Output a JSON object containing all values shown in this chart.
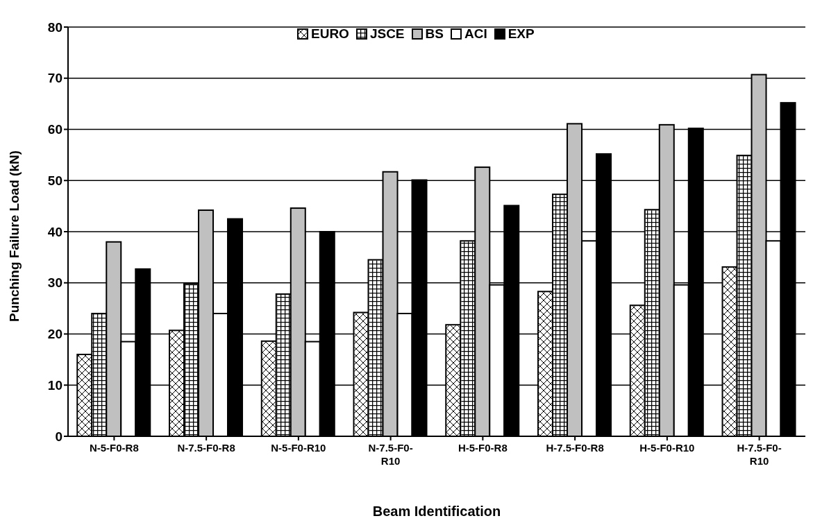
{
  "chart_data": {
    "type": "bar",
    "xlabel": "Beam Identification",
    "ylabel": "Punching Failure Load (kN)",
    "categories": [
      "N-5-F0-R8",
      "N-7.5-F0-R8",
      "N-5-F0-R10",
      "N-7.5-F0-R10",
      "H-5-F0-R8",
      "H-7.5-F0-R8",
      "H-5-F0-R10",
      "H-7.5-F0-R10"
    ],
    "series": [
      {
        "name": "EURO",
        "color": "#ffffff",
        "values": [
          16,
          20.7,
          18.6,
          24.2,
          21.8,
          28.3,
          25.6,
          33.1
        ]
      },
      {
        "name": "JSCE",
        "color": "#ffffff",
        "values": [
          24,
          29.8,
          27.8,
          34.5,
          38.2,
          47.3,
          44.3,
          54.9
        ]
      },
      {
        "name": "BS",
        "color": "#c0c0c0",
        "values": [
          38,
          44.2,
          44.6,
          51.7,
          52.6,
          61.1,
          60.9,
          70.7
        ]
      },
      {
        "name": "ACI",
        "color": "#ffffff",
        "values": [
          18.5,
          24,
          18.5,
          24,
          29.6,
          38.2,
          29.6,
          38.2
        ]
      },
      {
        "name": "EXP",
        "color": "#000000",
        "values": [
          32.7,
          42.5,
          40,
          50.1,
          45.1,
          55.2,
          60.2,
          65.2
        ]
      }
    ],
    "ylim": [
      0,
      80
    ],
    "yticks": [
      0,
      10,
      20,
      30,
      40,
      50,
      60,
      70,
      80
    ],
    "grid": "y",
    "legend": "top"
  }
}
